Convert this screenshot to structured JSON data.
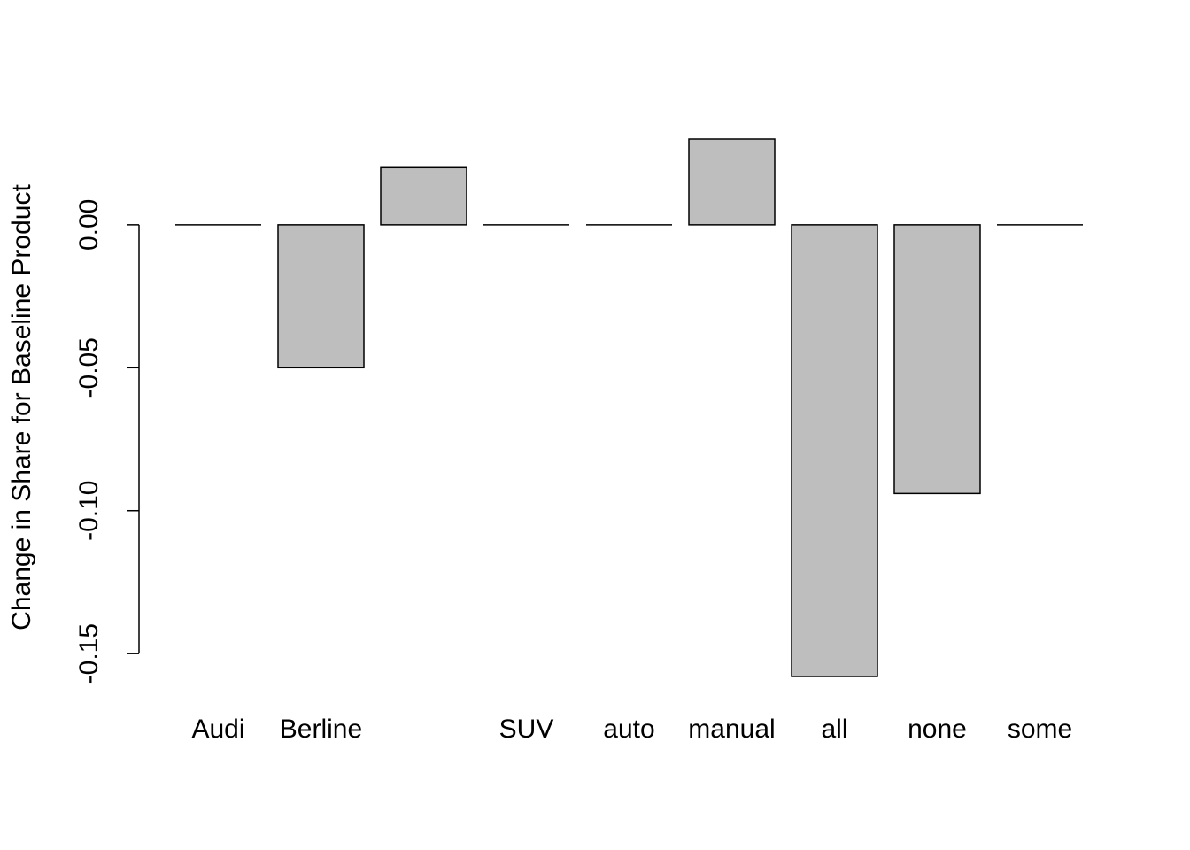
{
  "chart_data": {
    "type": "bar",
    "title": "",
    "xlabel": "",
    "ylabel": "Change in Share for Baseline Product",
    "categories": [
      "Audi",
      "Berline",
      "",
      "SUV",
      "auto",
      "manual",
      "all",
      "none",
      "some"
    ],
    "values": [
      0.0,
      -0.05,
      0.02,
      0.0,
      0.0,
      0.03,
      -0.158,
      -0.094,
      0.0
    ],
    "ylim": [
      -0.158,
      0.03
    ],
    "yticks": [
      0.0,
      -0.05,
      -0.1,
      -0.15
    ],
    "ytick_labels": [
      "0.00",
      "-0.05",
      "-0.10",
      "-0.15"
    ],
    "grid": false,
    "legend": "none",
    "colors": {
      "bar_fill": "#bebebe",
      "bar_stroke": "#000000",
      "axis": "#000000",
      "background": "#ffffff"
    }
  }
}
